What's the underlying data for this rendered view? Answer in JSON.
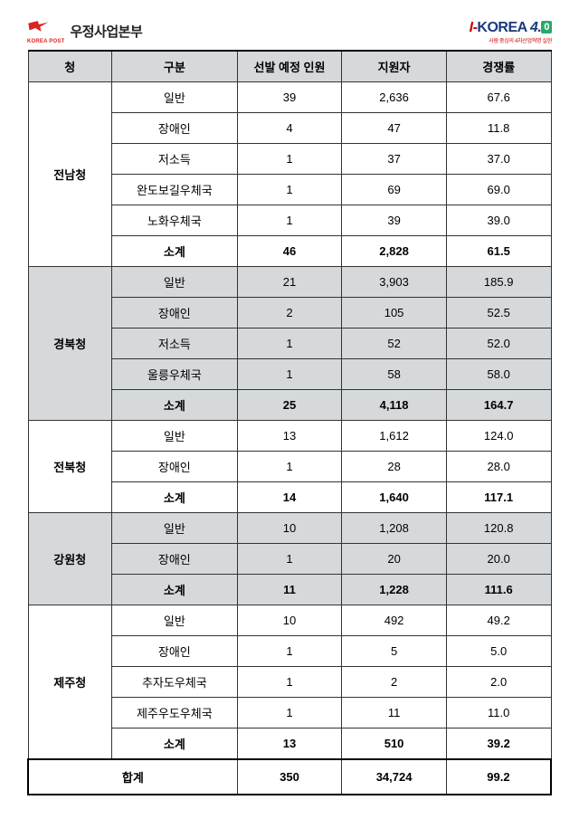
{
  "header": {
    "brand": "우정사업본부",
    "korea_post": "KOREA POST",
    "ikorea_sub": "사람 중심의 4차산업혁명 실현"
  },
  "columns": [
    "청",
    "구분",
    "선발 예정 인원",
    "지원자",
    "경쟁률"
  ],
  "groups": [
    {
      "office": "전남청",
      "shaded": false,
      "rows": [
        {
          "cat": "일반",
          "plan": "39",
          "app": "2,636",
          "rate": "67.6"
        },
        {
          "cat": "장애인",
          "plan": "4",
          "app": "47",
          "rate": "11.8"
        },
        {
          "cat": "저소득",
          "plan": "1",
          "app": "37",
          "rate": "37.0"
        },
        {
          "cat": "완도보길우체국",
          "plan": "1",
          "app": "69",
          "rate": "69.0"
        },
        {
          "cat": "노화우체국",
          "plan": "1",
          "app": "39",
          "rate": "39.0"
        }
      ],
      "subtotal": {
        "cat": "소계",
        "plan": "46",
        "app": "2,828",
        "rate": "61.5"
      }
    },
    {
      "office": "경북청",
      "shaded": true,
      "rows": [
        {
          "cat": "일반",
          "plan": "21",
          "app": "3,903",
          "rate": "185.9"
        },
        {
          "cat": "장애인",
          "plan": "2",
          "app": "105",
          "rate": "52.5"
        },
        {
          "cat": "저소득",
          "plan": "1",
          "app": "52",
          "rate": "52.0"
        },
        {
          "cat": "울릉우체국",
          "plan": "1",
          "app": "58",
          "rate": "58.0"
        }
      ],
      "subtotal": {
        "cat": "소계",
        "plan": "25",
        "app": "4,118",
        "rate": "164.7"
      }
    },
    {
      "office": "전북청",
      "shaded": false,
      "rows": [
        {
          "cat": "일반",
          "plan": "13",
          "app": "1,612",
          "rate": "124.0"
        },
        {
          "cat": "장애인",
          "plan": "1",
          "app": "28",
          "rate": "28.0"
        }
      ],
      "subtotal": {
        "cat": "소계",
        "plan": "14",
        "app": "1,640",
        "rate": "117.1"
      }
    },
    {
      "office": "강원청",
      "shaded": true,
      "rows": [
        {
          "cat": "일반",
          "plan": "10",
          "app": "1,208",
          "rate": "120.8"
        },
        {
          "cat": "장애인",
          "plan": "1",
          "app": "20",
          "rate": "20.0"
        }
      ],
      "subtotal": {
        "cat": "소계",
        "plan": "11",
        "app": "1,228",
        "rate": "111.6"
      }
    },
    {
      "office": "제주청",
      "shaded": false,
      "rows": [
        {
          "cat": "일반",
          "plan": "10",
          "app": "492",
          "rate": "49.2"
        },
        {
          "cat": "장애인",
          "plan": "1",
          "app": "5",
          "rate": "5.0"
        },
        {
          "cat": "추자도우체국",
          "plan": "1",
          "app": "2",
          "rate": "2.0"
        },
        {
          "cat": "제주우도우체국",
          "plan": "1",
          "app": "11",
          "rate": "11.0"
        }
      ],
      "subtotal": {
        "cat": "소계",
        "plan": "13",
        "app": "510",
        "rate": "39.2"
      }
    }
  ],
  "total": {
    "label": "합계",
    "plan": "350",
    "app": "34,724",
    "rate": "99.2"
  },
  "style": {
    "header_bg": "#d5d9dc",
    "shaded_bg": "#d5d9dc",
    "border_color": "#333333",
    "font_size": 13
  }
}
